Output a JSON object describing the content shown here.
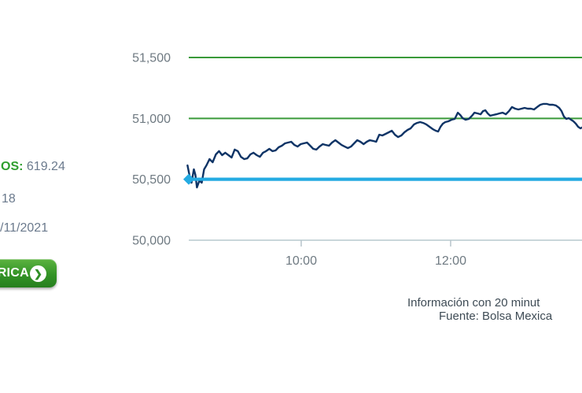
{
  "stats": {
    "line1_label": "OS:",
    "line1_value": "619.24",
    "line2": "18",
    "line3": "/11/2021",
    "label_color": "#2f9e2f",
    "value_color": "#6b7a8d"
  },
  "button": {
    "label": "RICA",
    "icon": "circle-arrow-right",
    "icon_glyph": "❯",
    "color": "#339326"
  },
  "footer": {
    "line1": "Información con 20 minut",
    "line2": "Fuente: Bolsa Mexica"
  },
  "chart_data": {
    "type": "line",
    "title": "",
    "xlabel": "",
    "ylabel": "",
    "x_unit": "minutes_of_day",
    "xlim": [
      509.7,
      825.5
    ],
    "ylim": [
      50000,
      51500
    ],
    "grid": "horizontal",
    "legend": null,
    "tick_color": "#6f7a82",
    "x_ticks": [
      {
        "t": 600,
        "label": "10:00"
      },
      {
        "t": 720,
        "label": "12:00"
      }
    ],
    "y_gridlines": [
      {
        "value": 51500,
        "label": "51,500",
        "color": "#3a9a3a",
        "width": 2
      },
      {
        "value": 51000,
        "label": "51,000",
        "color": "#3a9a3a",
        "width": 2
      },
      {
        "value": 50500,
        "label": "50,500",
        "color": "#24abe2",
        "width": 4
      },
      {
        "value": 50000,
        "label": "50,000",
        "color": "#c9d6da",
        "width": 2
      }
    ],
    "previous_close": {
      "value": 50500,
      "marker": "diamond",
      "color": "#24abe2"
    },
    "series": [
      {
        "name": "index-intraday",
        "color": "#0f3466",
        "width": 2.4,
        "points": [
          [
            508.7,
            50614
          ],
          [
            510.6,
            50517
          ],
          [
            511.9,
            50472
          ],
          [
            513.8,
            50582
          ],
          [
            515.0,
            50537
          ],
          [
            516.3,
            50433
          ],
          [
            518.2,
            50489
          ],
          [
            520.1,
            50472
          ],
          [
            522.0,
            50582
          ],
          [
            523.9,
            50614
          ],
          [
            526.4,
            50666
          ],
          [
            528.9,
            50640
          ],
          [
            531.5,
            50705
          ],
          [
            534.0,
            50731
          ],
          [
            536.5,
            50698
          ],
          [
            539.0,
            50718
          ],
          [
            541.6,
            50698
          ],
          [
            544.1,
            50679
          ],
          [
            546.6,
            50744
          ],
          [
            549.1,
            50731
          ],
          [
            551.6,
            50685
          ],
          [
            554.2,
            50666
          ],
          [
            556.7,
            50672
          ],
          [
            559.2,
            50705
          ],
          [
            561.7,
            50718
          ],
          [
            564.3,
            50698
          ],
          [
            566.8,
            50685
          ],
          [
            569.3,
            50718
          ],
          [
            571.8,
            50731
          ],
          [
            574.4,
            50750
          ],
          [
            576.9,
            50731
          ],
          [
            579.4,
            50737
          ],
          [
            581.9,
            50763
          ],
          [
            584.5,
            50776
          ],
          [
            587.0,
            50795
          ],
          [
            589.5,
            50802
          ],
          [
            592.0,
            50808
          ],
          [
            594.6,
            50782
          ],
          [
            597.1,
            50769
          ],
          [
            599.6,
            50789
          ],
          [
            602.1,
            50795
          ],
          [
            604.7,
            50802
          ],
          [
            607.2,
            50776
          ],
          [
            609.7,
            50750
          ],
          [
            612.2,
            50744
          ],
          [
            614.7,
            50769
          ],
          [
            617.3,
            50789
          ],
          [
            619.8,
            50782
          ],
          [
            622.3,
            50776
          ],
          [
            624.8,
            50802
          ],
          [
            627.4,
            50821
          ],
          [
            629.9,
            50802
          ],
          [
            632.4,
            50782
          ],
          [
            634.9,
            50769
          ],
          [
            637.5,
            50756
          ],
          [
            640.0,
            50769
          ],
          [
            642.5,
            50795
          ],
          [
            645.0,
            50821
          ],
          [
            647.6,
            50808
          ],
          [
            650.1,
            50789
          ],
          [
            652.6,
            50808
          ],
          [
            655.1,
            50821
          ],
          [
            657.7,
            50815
          ],
          [
            660.2,
            50808
          ],
          [
            662.7,
            50866
          ],
          [
            665.2,
            50860
          ],
          [
            667.8,
            50873
          ],
          [
            670.3,
            50886
          ],
          [
            672.8,
            50899
          ],
          [
            675.3,
            50866
          ],
          [
            677.8,
            50847
          ],
          [
            680.4,
            50860
          ],
          [
            682.9,
            50886
          ],
          [
            685.4,
            50905
          ],
          [
            687.9,
            50918
          ],
          [
            690.5,
            50950
          ],
          [
            693.0,
            50963
          ],
          [
            695.5,
            50970
          ],
          [
            698.0,
            50963
          ],
          [
            700.6,
            50950
          ],
          [
            703.1,
            50931
          ],
          [
            705.6,
            50912
          ],
          [
            708.1,
            50899
          ],
          [
            710.0,
            50892
          ],
          [
            711.9,
            50931
          ],
          [
            713.8,
            50957
          ],
          [
            715.7,
            50970
          ],
          [
            718.2,
            50976
          ],
          [
            720.8,
            50989
          ],
          [
            723.3,
            50996
          ],
          [
            725.8,
            51047
          ],
          [
            727.7,
            51028
          ],
          [
            729.6,
            51002
          ],
          [
            732.1,
            50989
          ],
          [
            734.6,
            50996
          ],
          [
            737.2,
            51022
          ],
          [
            739.1,
            51047
          ],
          [
            741.6,
            51041
          ],
          [
            744.1,
            51034
          ],
          [
            746.0,
            51060
          ],
          [
            747.9,
            51067
          ],
          [
            749.8,
            51041
          ],
          [
            751.7,
            51022
          ],
          [
            754.2,
            51028
          ],
          [
            756.7,
            51034
          ],
          [
            759.2,
            51041
          ],
          [
            761.8,
            51047
          ],
          [
            764.3,
            51034
          ],
          [
            766.8,
            51060
          ],
          [
            769.3,
            51093
          ],
          [
            771.9,
            51080
          ],
          [
            774.4,
            51073
          ],
          [
            776.9,
            51080
          ],
          [
            779.4,
            51086
          ],
          [
            781.9,
            51080
          ],
          [
            784.5,
            51080
          ],
          [
            787.0,
            51073
          ],
          [
            789.5,
            51093
          ],
          [
            792.0,
            51112
          ],
          [
            794.6,
            51119
          ],
          [
            797.1,
            51119
          ],
          [
            799.6,
            51112
          ],
          [
            802.1,
            51112
          ],
          [
            804.6,
            51106
          ],
          [
            807.2,
            51086
          ],
          [
            809.1,
            51060
          ],
          [
            811.0,
            51015
          ],
          [
            812.9,
            50996
          ],
          [
            814.8,
            51002
          ],
          [
            816.7,
            50989
          ],
          [
            818.6,
            50976
          ],
          [
            820.5,
            50957
          ],
          [
            822.4,
            50931
          ],
          [
            824.3,
            50918
          ],
          [
            825.5,
            50925
          ]
        ]
      }
    ]
  }
}
